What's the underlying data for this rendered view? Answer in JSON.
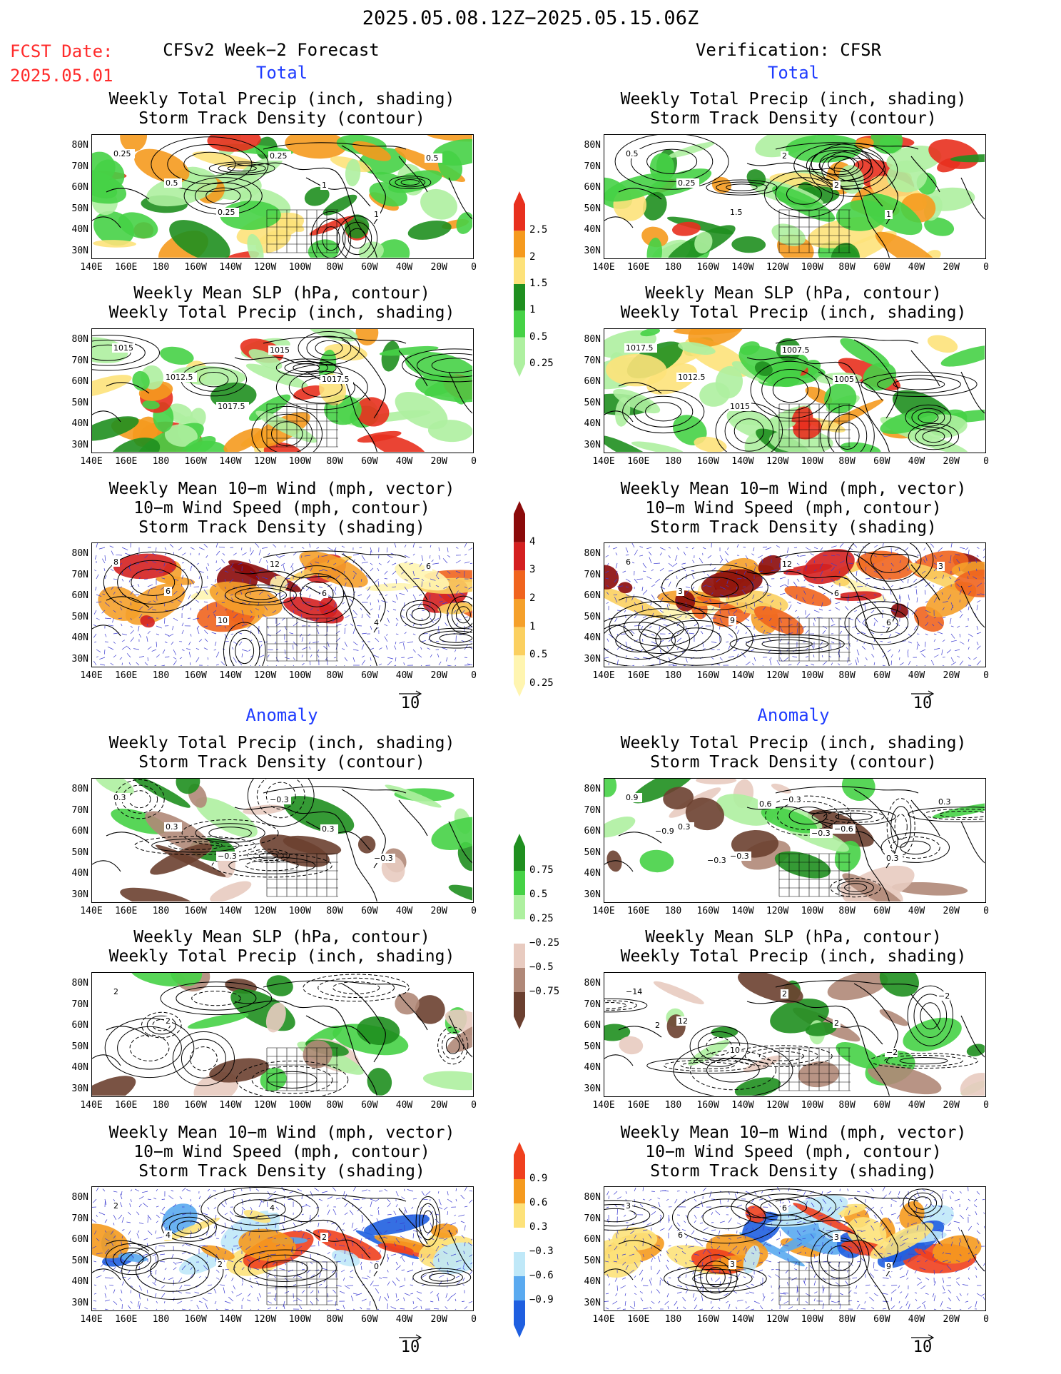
{
  "header": {
    "date_range": "2025.05.08.12Z−2025.05.15.06Z",
    "fcst_date_label": "FCST Date:",
    "fcst_date_value": "2025.05.01",
    "left_title": "CFSv2 Week−2 Forecast",
    "right_title": "Verification: CFSR"
  },
  "sections": {
    "total": "Total",
    "anomaly": "Anomaly"
  },
  "panel_titles": {
    "precip_storm": [
      "Weekly Total Precip (inch, shading)",
      "Storm Track Density (contour)"
    ],
    "slp_precip": [
      "Weekly Mean SLP (hPa, contour)",
      "Weekly Total Precip (inch, shading)"
    ],
    "wind_storm": [
      "Weekly Mean 10−m Wind (mph, vector)",
      "10−m Wind Speed (mph, contour)",
      "Storm Track Density (shading)"
    ]
  },
  "axes": {
    "lat_labels": [
      "80N",
      "70N",
      "60N",
      "50N",
      "40N",
      "30N"
    ],
    "lon_labels": [
      "140E",
      "160E",
      "180",
      "160W",
      "140W",
      "120W",
      "100W",
      "80W",
      "60W",
      "40W",
      "20W",
      "0"
    ]
  },
  "vector_scale": "10",
  "colorbars": {
    "precip_total": {
      "labels": [
        "2.5",
        "2",
        "1.5",
        "1",
        "0.5",
        "0.25"
      ],
      "colors": [
        "#e8301e",
        "#f59a1e",
        "#fde27a",
        "#1f8f1f",
        "#46d246",
        "#aef0a0"
      ]
    },
    "storm_total": {
      "labels": [
        "4",
        "3",
        "2",
        "1",
        "0.5",
        "0.25"
      ],
      "colors": [
        "#8b0a0a",
        "#d42020",
        "#f0641e",
        "#f5a02a",
        "#fbd060",
        "#fff5b0"
      ]
    },
    "precip_anom": {
      "labels": [
        "0.75",
        "0.5",
        "0.25",
        "−0.25",
        "−0.5",
        "−0.75"
      ],
      "colors": [
        "#1f8f1f",
        "#46d246",
        "#aef0a0",
        "#ffffff",
        "#e8cbc0",
        "#b08878",
        "#6b4030"
      ]
    },
    "storm_anom": {
      "labels": [
        "0.9",
        "0.6",
        "0.3",
        "−0.3",
        "−0.6",
        "−0.9"
      ],
      "colors": [
        "#f0401e",
        "#f59a1e",
        "#fde27a",
        "#ffffff",
        "#bfe8f8",
        "#5aaaf0",
        "#1f5fe0"
      ]
    }
  },
  "contour_labels": {
    "fc_precip_total": [
      "0.25",
      "0.5",
      "0.25",
      "0.25",
      "1",
      "1",
      "0.5"
    ],
    "vf_precip_total": [
      "0.5",
      "0.25",
      "1.5",
      "2",
      "2",
      "1"
    ],
    "fc_slp_total": [
      "1015",
      "1012.5",
      "1017.5",
      "1015",
      "1017.5"
    ],
    "vf_slp_total": [
      "1017.5",
      "1012.5",
      "1015",
      "1007.5",
      "1005"
    ],
    "fc_wind_total": [
      "8",
      "6",
      "10",
      "12",
      "6",
      "4",
      "6"
    ],
    "vf_wind_total": [
      "6",
      "3",
      "9",
      "12",
      "6",
      "6",
      "3"
    ],
    "fc_precip_anom": [
      "0.3",
      "0.3",
      "−0.3",
      "−0.3",
      "0.3",
      "−0.3"
    ],
    "vf_precip_anom": [
      "0.9",
      "0.3",
      "−0.3",
      "−0.3",
      "−0.6",
      "0.3",
      "0.3",
      "−0.9",
      "−0.3",
      "0.6",
      "−0.3"
    ],
    "fc_slp_anom": [
      "2",
      "2"
    ],
    "vf_slp_anom": [
      "−14",
      "12",
      "10",
      "2",
      "2",
      "−2",
      "−2",
      "2"
    ],
    "fc_wind_anom": [
      "2",
      "4",
      "2",
      "4",
      "2",
      "0"
    ],
    "vf_wind_anom": [
      "3",
      "6",
      "3",
      "6",
      "3",
      "9"
    ]
  }
}
